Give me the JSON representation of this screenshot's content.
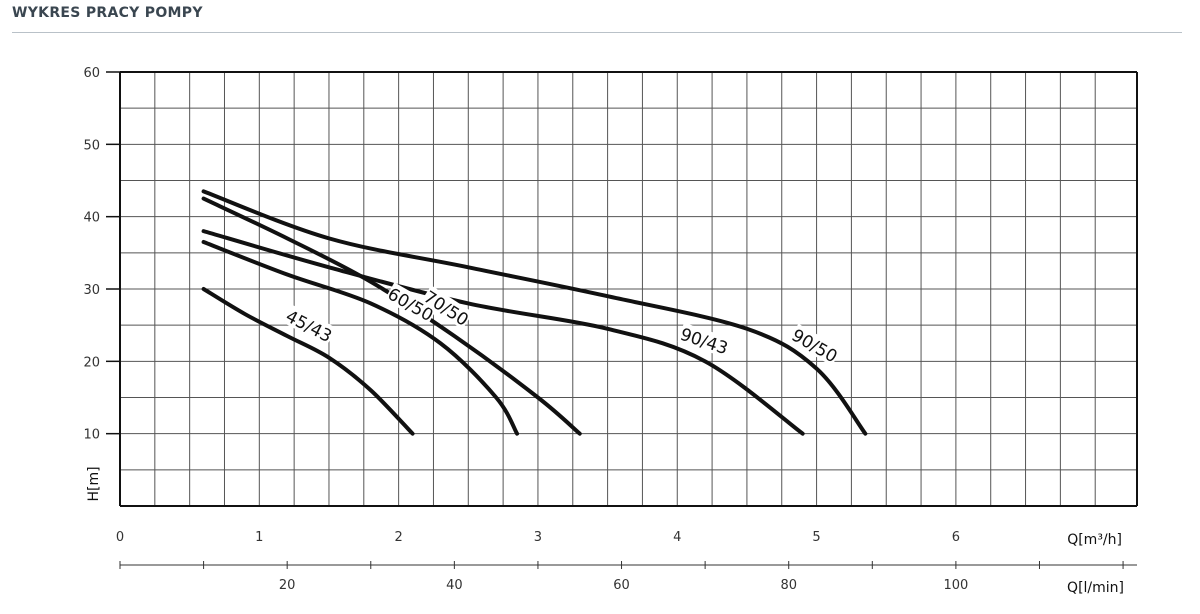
{
  "page": {
    "title": "WYKRES PRACY POMPY"
  },
  "chart_data": {
    "type": "line",
    "title": "WYKRES PRACY POMPY",
    "ylabel": "H[m]",
    "xlabel": "Q[m³/h]",
    "x2label": "Q[l/min]",
    "ylim": [
      0,
      60
    ],
    "xlim": [
      0,
      7.3
    ],
    "y_ticks": [
      10,
      20,
      30,
      40,
      50,
      60
    ],
    "x_ticks": [
      0,
      1,
      2,
      3,
      4,
      5,
      6
    ],
    "x2_ticks": [
      20,
      40,
      60,
      80,
      100
    ],
    "grid": true,
    "line_color": "#111111",
    "series": [
      {
        "name": "45/43",
        "x": [
          0.6,
          0.9,
          1.2,
          1.5,
          1.8,
          2.1
        ],
        "y": [
          30,
          26.5,
          23.5,
          20.5,
          16,
          10
        ]
      },
      {
        "name": "60/50",
        "x": [
          0.6,
          1.2,
          1.8,
          2.3,
          2.7,
          2.85
        ],
        "y": [
          36.5,
          32,
          28,
          22.5,
          15,
          10
        ]
      },
      {
        "name": "70/50",
        "x": [
          0.6,
          1.2,
          1.8,
          2.4,
          3.0,
          3.3
        ],
        "y": [
          42.5,
          37,
          31,
          23.5,
          15,
          10
        ]
      },
      {
        "name": "90/43",
        "x": [
          0.6,
          1.5,
          2.5,
          3.5,
          4.2,
          4.9
        ],
        "y": [
          38,
          33,
          28,
          24.5,
          20,
          10
        ]
      },
      {
        "name": "90/50",
        "x": [
          0.6,
          1.5,
          2.5,
          3.5,
          4.5,
          5.0,
          5.35
        ],
        "y": [
          43.5,
          37,
          33,
          29,
          24.5,
          19,
          10
        ]
      }
    ]
  }
}
